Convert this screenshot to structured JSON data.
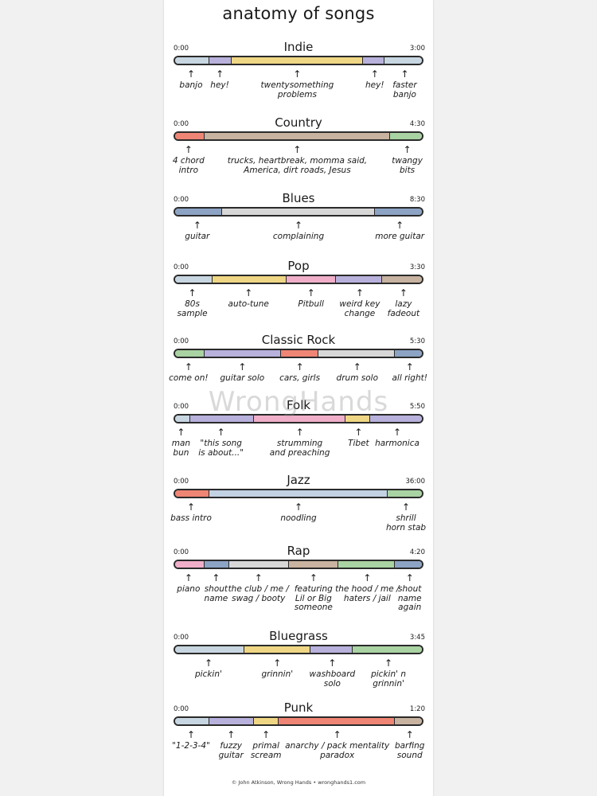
{
  "title": "anatomy of songs",
  "watermark": "WrongHands",
  "credit": "© John Atkinson, Wrong Hands • wronghands1.com",
  "colors": {
    "blue_light": "#c7d6e1",
    "purple": "#b8b1dc",
    "yellow": "#eed684",
    "red": "#ef8574",
    "tan": "#c8b2a0",
    "green": "#a9d3a2",
    "blue_dark": "#8ca3c4",
    "gray": "#d7d7d7",
    "pink": "#f0aec8",
    "blue_mid": "#c2d2e3"
  },
  "songs": [
    {
      "name": "Indie",
      "start": "0:00",
      "end": "3:00",
      "segments": [
        {
          "label": "banjo",
          "fraction": 0.14,
          "color": "blue_light"
        },
        {
          "label": "hey!",
          "fraction": 0.09,
          "color": "purple"
        },
        {
          "label": "twentysomething\nproblems",
          "fraction": 0.53,
          "color": "yellow"
        },
        {
          "label": "hey!",
          "fraction": 0.09,
          "color": "purple"
        },
        {
          "label": "faster\nbanjo",
          "fraction": 0.15,
          "color": "blue_light"
        }
      ]
    },
    {
      "name": "Country",
      "start": "0:00",
      "end": "4:30",
      "segments": [
        {
          "label": "4 chord\nintro",
          "fraction": 0.12,
          "color": "red"
        },
        {
          "label": "trucks, heartbreak, momma said,\nAmerica, dirt roads, Jesus",
          "fraction": 0.75,
          "color": "tan"
        },
        {
          "label": "twangy\nbits",
          "fraction": 0.13,
          "color": "green"
        }
      ]
    },
    {
      "name": "Blues",
      "start": "0:00",
      "end": "8:30",
      "segments": [
        {
          "label": "guitar",
          "fraction": 0.19,
          "color": "blue_dark"
        },
        {
          "label": "complaining",
          "fraction": 0.62,
          "color": "gray"
        },
        {
          "label": "more guitar",
          "fraction": 0.19,
          "color": "blue_dark"
        }
      ]
    },
    {
      "name": "Pop",
      "start": "0:00",
      "end": "3:30",
      "segments": [
        {
          "label": "80s\nsample",
          "fraction": 0.15,
          "color": "blue_light"
        },
        {
          "label": "auto-tune",
          "fraction": 0.3,
          "color": "yellow"
        },
        {
          "label": "Pitbull",
          "fraction": 0.2,
          "color": "pink"
        },
        {
          "label": "weird key\nchange",
          "fraction": 0.19,
          "color": "purple"
        },
        {
          "label": "lazy\nfadeout",
          "fraction": 0.16,
          "color": "tan"
        }
      ]
    },
    {
      "name": "Classic Rock",
      "start": "0:00",
      "end": "5:30",
      "segments": [
        {
          "label": "come on!",
          "fraction": 0.12,
          "color": "green"
        },
        {
          "label": "guitar solo",
          "fraction": 0.31,
          "color": "purple"
        },
        {
          "label": "cars, girls",
          "fraction": 0.15,
          "color": "red"
        },
        {
          "label": "drum solo",
          "fraction": 0.31,
          "color": "gray"
        },
        {
          "label": "all right!",
          "fraction": 0.11,
          "color": "blue_dark"
        }
      ]
    },
    {
      "name": "Folk",
      "start": "0:00",
      "end": "5:50",
      "segments": [
        {
          "label": "man\nbun",
          "fraction": 0.06,
          "color": "blue_light"
        },
        {
          "label": "\"this song\nis about...\"",
          "fraction": 0.26,
          "color": "purple"
        },
        {
          "label": "strumming\nand preaching",
          "fraction": 0.37,
          "color": "pink"
        },
        {
          "label": "Tibet",
          "fraction": 0.1,
          "color": "yellow"
        },
        {
          "label": "harmonica",
          "fraction": 0.21,
          "color": "purple"
        }
      ]
    },
    {
      "name": "Jazz",
      "start": "0:00",
      "end": "36:00",
      "segments": [
        {
          "label": "bass intro",
          "fraction": 0.14,
          "color": "red"
        },
        {
          "label": "noodling",
          "fraction": 0.72,
          "color": "blue_mid"
        },
        {
          "label": "shrill\nhorn stab",
          "fraction": 0.14,
          "color": "green"
        }
      ]
    },
    {
      "name": "Rap",
      "start": "0:00",
      "end": "4:20",
      "segments": [
        {
          "label": "piano",
          "fraction": 0.12,
          "color": "pink"
        },
        {
          "label": "shout\nname",
          "fraction": 0.1,
          "color": "blue_dark"
        },
        {
          "label": "the club / me /\nswag / booty",
          "fraction": 0.24,
          "color": "gray"
        },
        {
          "label": "featuring\nLil or Big\nsomeone",
          "fraction": 0.2,
          "color": "tan"
        },
        {
          "label": "the hood / me /\nhaters / jail",
          "fraction": 0.23,
          "color": "green"
        },
        {
          "label": "shout\nname\nagain",
          "fraction": 0.11,
          "color": "blue_dark"
        }
      ]
    },
    {
      "name": "Bluegrass",
      "start": "0:00",
      "end": "3:45",
      "segments": [
        {
          "label": "pickin'",
          "fraction": 0.28,
          "color": "blue_light"
        },
        {
          "label": "grinnin'",
          "fraction": 0.27,
          "color": "yellow"
        },
        {
          "label": "washboard\nsolo",
          "fraction": 0.17,
          "color": "purple"
        },
        {
          "label": "pickin' n\ngrinnin'",
          "fraction": 0.28,
          "color": "green"
        }
      ]
    },
    {
      "name": "Punk",
      "start": "0:00",
      "end": "1:20",
      "segments": [
        {
          "label": "\"1-2-3-4\"",
          "fraction": 0.14,
          "color": "blue_light"
        },
        {
          "label": "fuzzy\nguitar",
          "fraction": 0.18,
          "color": "purple"
        },
        {
          "label": "primal\nscream",
          "fraction": 0.1,
          "color": "yellow"
        },
        {
          "label": "anarchy / pack mentality\nparadox",
          "fraction": 0.47,
          "color": "red"
        },
        {
          "label": "barfing\nsound",
          "fraction": 0.11,
          "color": "tan"
        }
      ]
    }
  ]
}
